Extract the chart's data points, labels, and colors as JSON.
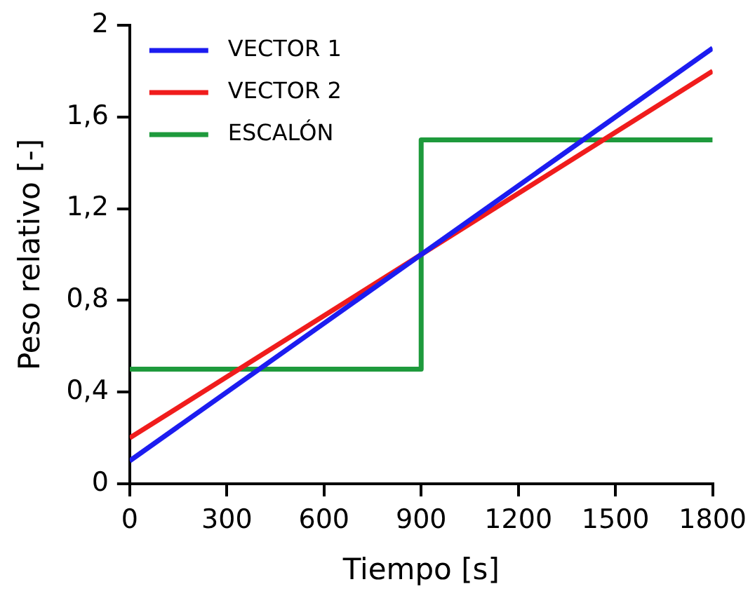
{
  "chart_data": {
    "type": "line",
    "xlabel": "Tiempo [s]",
    "ylabel": "Peso relativo [-]",
    "xlim": [
      0,
      1800
    ],
    "xticks": [
      0,
      300,
      600,
      900,
      1200,
      1500,
      1800
    ],
    "ylim": [
      0,
      2
    ],
    "yticks": [
      0,
      {
        "value": 0.4,
        "label": "0,4"
      },
      {
        "value": 0.8,
        "label": "0,8"
      },
      {
        "value": 1.2,
        "label": "1,2"
      },
      {
        "value": 1.6,
        "label": "1,6"
      },
      2
    ],
    "grid": false,
    "legend": "top left",
    "marker": "none",
    "line_style": "solid",
    "series": [
      {
        "name": "VECTOR 1",
        "color": "#1c1cf0",
        "x": [
          0,
          1800
        ],
        "values": [
          0.1,
          1.9
        ]
      },
      {
        "name": "VECTOR 2",
        "color": "#f01c1c",
        "x": [
          0,
          1800
        ],
        "values": [
          0.2,
          1.8
        ]
      },
      {
        "name": "ESCALÓN",
        "type": "step",
        "color": "#1e9a3c",
        "x": [
          0,
          900,
          1800
        ],
        "values": [
          0.5,
          1.5,
          1.5
        ]
      }
    ]
  }
}
